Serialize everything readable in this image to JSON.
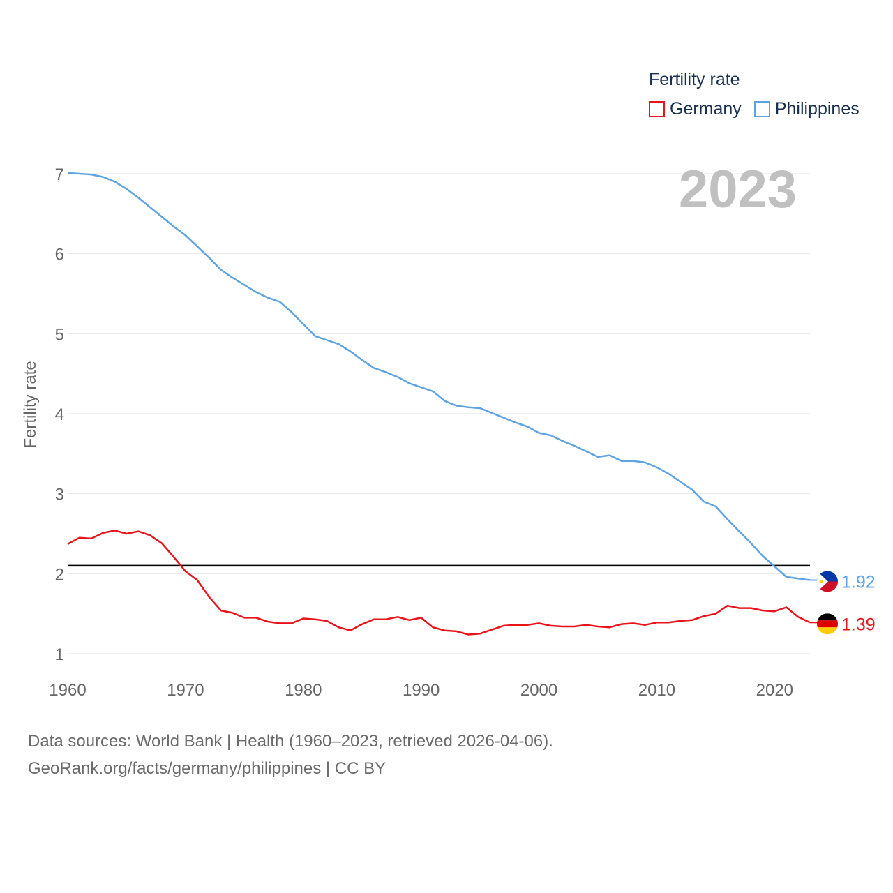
{
  "legend": {
    "title": "Fertility rate",
    "items": [
      {
        "label": "Germany",
        "color": "#e8141c"
      },
      {
        "label": "Philippines",
        "color": "#5fa4e2"
      }
    ]
  },
  "year_badge": "2023",
  "footer": {
    "line1": "Data sources: World Bank | Health (1960–2023, retrieved 2026-04-06).",
    "line2": "GeoRank.org/facts/germany/philippines | CC BY"
  },
  "chart_data": {
    "type": "line",
    "title": "Fertility rate",
    "xlabel": "",
    "ylabel": "Fertility rate",
    "xlim": [
      1960,
      2023
    ],
    "ylim": [
      0.85,
      7.05
    ],
    "xticks": [
      1960,
      1970,
      1980,
      1990,
      2000,
      2010,
      2020
    ],
    "yticks": [
      1,
      2,
      3,
      4,
      5,
      6,
      7
    ],
    "grid": true,
    "reference_line": 2.1,
    "x": [
      1960,
      1961,
      1962,
      1963,
      1964,
      1965,
      1966,
      1967,
      1968,
      1969,
      1970,
      1971,
      1972,
      1973,
      1974,
      1975,
      1976,
      1977,
      1978,
      1979,
      1980,
      1981,
      1982,
      1983,
      1984,
      1985,
      1986,
      1987,
      1988,
      1989,
      1990,
      1991,
      1992,
      1993,
      1994,
      1995,
      1996,
      1997,
      1998,
      1999,
      2000,
      2001,
      2002,
      2003,
      2004,
      2005,
      2006,
      2007,
      2008,
      2009,
      2010,
      2011,
      2012,
      2013,
      2014,
      2015,
      2016,
      2017,
      2018,
      2019,
      2020,
      2021,
      2022,
      2023
    ],
    "series": [
      {
        "name": "Germany",
        "color": "#e8141c",
        "end_label": "1.39",
        "flag": "germany-flag",
        "values": [
          2.37,
          2.45,
          2.44,
          2.51,
          2.54,
          2.5,
          2.53,
          2.48,
          2.38,
          2.21,
          2.03,
          1.92,
          1.71,
          1.54,
          1.51,
          1.45,
          1.45,
          1.4,
          1.38,
          1.38,
          1.44,
          1.43,
          1.41,
          1.33,
          1.29,
          1.37,
          1.43,
          1.43,
          1.46,
          1.42,
          1.45,
          1.33,
          1.29,
          1.28,
          1.24,
          1.25,
          1.3,
          1.35,
          1.36,
          1.36,
          1.38,
          1.35,
          1.34,
          1.34,
          1.36,
          1.34,
          1.33,
          1.37,
          1.38,
          1.36,
          1.39,
          1.39,
          1.41,
          1.42,
          1.47,
          1.5,
          1.6,
          1.57,
          1.57,
          1.54,
          1.53,
          1.58,
          1.46,
          1.39
        ]
      },
      {
        "name": "Philippines",
        "color": "#5fa4e2",
        "end_label": "1.92",
        "flag": "philippines-flag",
        "values": [
          7.01,
          7.0,
          6.99,
          6.96,
          6.9,
          6.81,
          6.7,
          6.58,
          6.46,
          6.34,
          6.23,
          6.09,
          5.95,
          5.8,
          5.7,
          5.61,
          5.52,
          5.45,
          5.4,
          5.27,
          5.12,
          4.97,
          4.92,
          4.87,
          4.78,
          4.67,
          4.57,
          4.52,
          4.46,
          4.38,
          4.33,
          4.28,
          4.16,
          4.1,
          4.08,
          4.07,
          4.01,
          3.95,
          3.89,
          3.84,
          3.76,
          3.73,
          3.66,
          3.6,
          3.53,
          3.46,
          3.48,
          3.41,
          3.41,
          3.39,
          3.33,
          3.25,
          3.15,
          3.05,
          2.9,
          2.84,
          2.68,
          2.53,
          2.38,
          2.22,
          2.09,
          1.96,
          1.94,
          1.92
        ]
      }
    ]
  }
}
